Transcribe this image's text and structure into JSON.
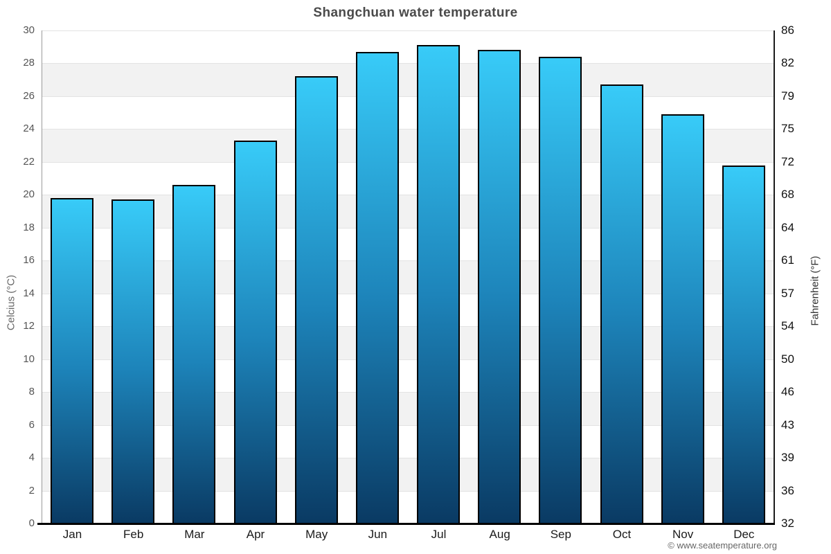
{
  "title": "Shangchuan water temperature",
  "attribution": "© www.seatemperature.org",
  "chart_data": {
    "type": "bar",
    "title": "Shangchuan water temperature",
    "categories": [
      "Jan",
      "Feb",
      "Mar",
      "Apr",
      "May",
      "Jun",
      "Jul",
      "Aug",
      "Sep",
      "Oct",
      "Nov",
      "Dec"
    ],
    "values": [
      19.8,
      19.7,
      20.6,
      23.3,
      27.2,
      28.7,
      29.1,
      28.8,
      28.4,
      26.7,
      24.9,
      21.8
    ],
    "unit": "°C",
    "xlabel": "",
    "ylabel": "Celcius (°C)",
    "ylabel_right": "Fahrenheit (°F)",
    "ylim": [
      0,
      30
    ],
    "yticks_left": [
      30,
      28,
      26,
      24,
      22,
      20,
      18,
      16,
      14,
      12,
      10,
      8,
      6,
      4,
      2,
      0
    ],
    "yticks_right": [
      86,
      82,
      79,
      75,
      72,
      68,
      64,
      61,
      57,
      54,
      50,
      46,
      43,
      39,
      36,
      32
    ],
    "grid": "horizontal-bands-alternating",
    "legend": "none",
    "colors": {
      "bar_gradient_top": "#38cbf8",
      "bar_gradient_mid": "#1d84ba",
      "bar_gradient_bottom": "#0a3a63",
      "bar_border": "#000000",
      "band_alt": "#f2f2f2",
      "band_base": "#ffffff",
      "gridline": "#e3e3e3",
      "title_color": "#4a4a4a"
    }
  }
}
